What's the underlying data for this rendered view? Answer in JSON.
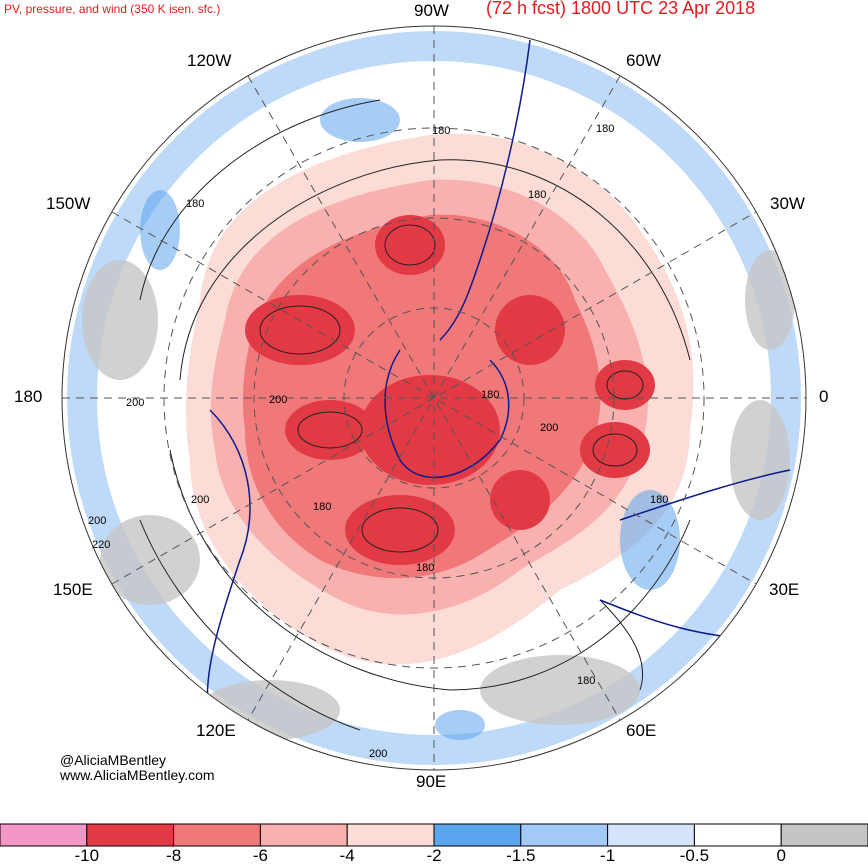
{
  "header": {
    "title_left": "PV, pressure, and wind (350 K isen. sfc.)",
    "title_right": "(72 h fcst) 1800 UTC 23 Apr 2018"
  },
  "longitude_labels": {
    "top": "90W",
    "upper_left": "120W",
    "upper_right": "60W",
    "left_upper": "150W",
    "right_upper": "30W",
    "left": "180",
    "right": "0",
    "left_lower": "150E",
    "right_lower": "30E",
    "lower_left": "120E",
    "lower_right": "60E",
    "bottom": "90E"
  },
  "contour_labels": [
    "180",
    "180",
    "180",
    "180",
    "200",
    "200",
    "200",
    "200",
    "180",
    "200",
    "220",
    "180",
    "180",
    "180",
    "180",
    "200"
  ],
  "credits": {
    "handle": "@AliciaMBentley",
    "website": "www.AliciaMBentley.com"
  },
  "colorbar": {
    "bins": [
      {
        "color": "#f497c6"
      },
      {
        "color": "#e23a45"
      },
      {
        "color": "#f07879"
      },
      {
        "color": "#f8b1af"
      },
      {
        "color": "#fbdcd6"
      },
      {
        "color": "#5da4ee"
      },
      {
        "color": "#a3c9f7"
      },
      {
        "color": "#d3e4fb"
      },
      {
        "color": "#ffffff"
      },
      {
        "color": "#c5c5c5"
      }
    ],
    "tick_labels": [
      "-10",
      "-8",
      "-6",
      "-4",
      "-2",
      "-1.5",
      "-1",
      "-0.5",
      "0"
    ]
  }
}
